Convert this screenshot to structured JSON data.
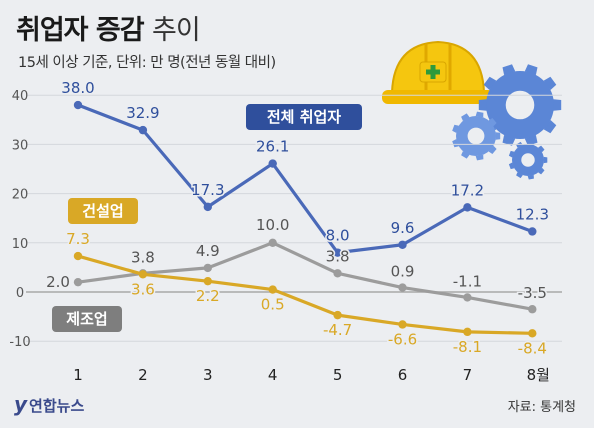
{
  "header": {
    "title_bold": "취업자 증감",
    "title_light": "추이",
    "subtitle": "15세 이상 기준, 단위: 만 명(전년 동월 대비)"
  },
  "footer": {
    "logo_text": "연합뉴스",
    "source": "자료: 통계청"
  },
  "icons": [
    "hard-hat-icon",
    "gear-icon"
  ],
  "colors": {
    "background": "#eceef1",
    "employment": "#4a69b8",
    "construction": "#d9a826",
    "manufacturing": "#9c9c9c",
    "label_blue_box": "#2f4f9c"
  },
  "chart_data": {
    "type": "line",
    "x": [
      "1",
      "2",
      "3",
      "4",
      "5",
      "6",
      "7",
      "8월"
    ],
    "ylim": [
      -12,
      45
    ],
    "yticks": [
      40,
      30,
      20,
      10,
      0,
      -10
    ],
    "grid": true,
    "legend": "inline labels",
    "series": [
      {
        "name": "전체 취업자",
        "values": [
          38.0,
          32.9,
          17.3,
          26.1,
          8.0,
          9.6,
          17.2,
          12.3
        ],
        "labels": [
          "38.0",
          "32.9",
          "17.3",
          "26.1",
          "8.0",
          "9.6",
          "17.2",
          "12.3"
        ],
        "color": "#4a69b8"
      },
      {
        "name": "건설업",
        "values": [
          7.3,
          3.6,
          2.2,
          0.5,
          -4.7,
          -6.6,
          -8.1,
          -8.4
        ],
        "labels": [
          "7.3",
          "3.6",
          "2.2",
          "0.5",
          "-4.7",
          "-6.6",
          "-8.1",
          "-8.4"
        ],
        "color": "#d9a826"
      },
      {
        "name": "제조업",
        "values": [
          2.0,
          3.8,
          4.9,
          10.0,
          3.8,
          0.9,
          -1.1,
          -3.5
        ],
        "labels": [
          "2.0",
          "3.8",
          "4.9",
          "10.0",
          "3.8",
          "0.9",
          "-1.1",
          "-3.5"
        ],
        "color": "#9c9c9c"
      }
    ]
  }
}
